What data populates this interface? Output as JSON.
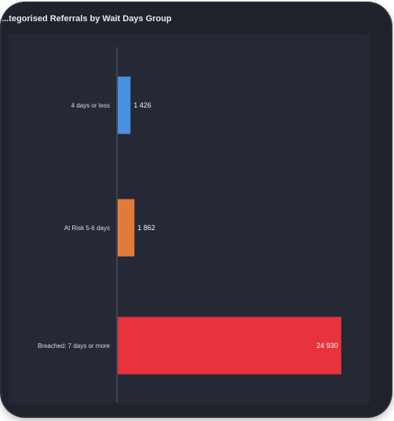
{
  "chart_data": {
    "type": "bar",
    "orientation": "horizontal",
    "title": "...tegorised Referrals by Wait Days Group",
    "categories": [
      "4 days or less",
      "At Risk 5-6 days",
      "Breached: 7 days or more"
    ],
    "values": [
      1426,
      1862,
      24930
    ],
    "value_labels": [
      "1 426",
      "1 862",
      "24 930"
    ],
    "colors": [
      "#4a90e2",
      "#e07b39",
      "#e8323e"
    ],
    "xlim": [
      0,
      26000
    ],
    "grid": false
  }
}
